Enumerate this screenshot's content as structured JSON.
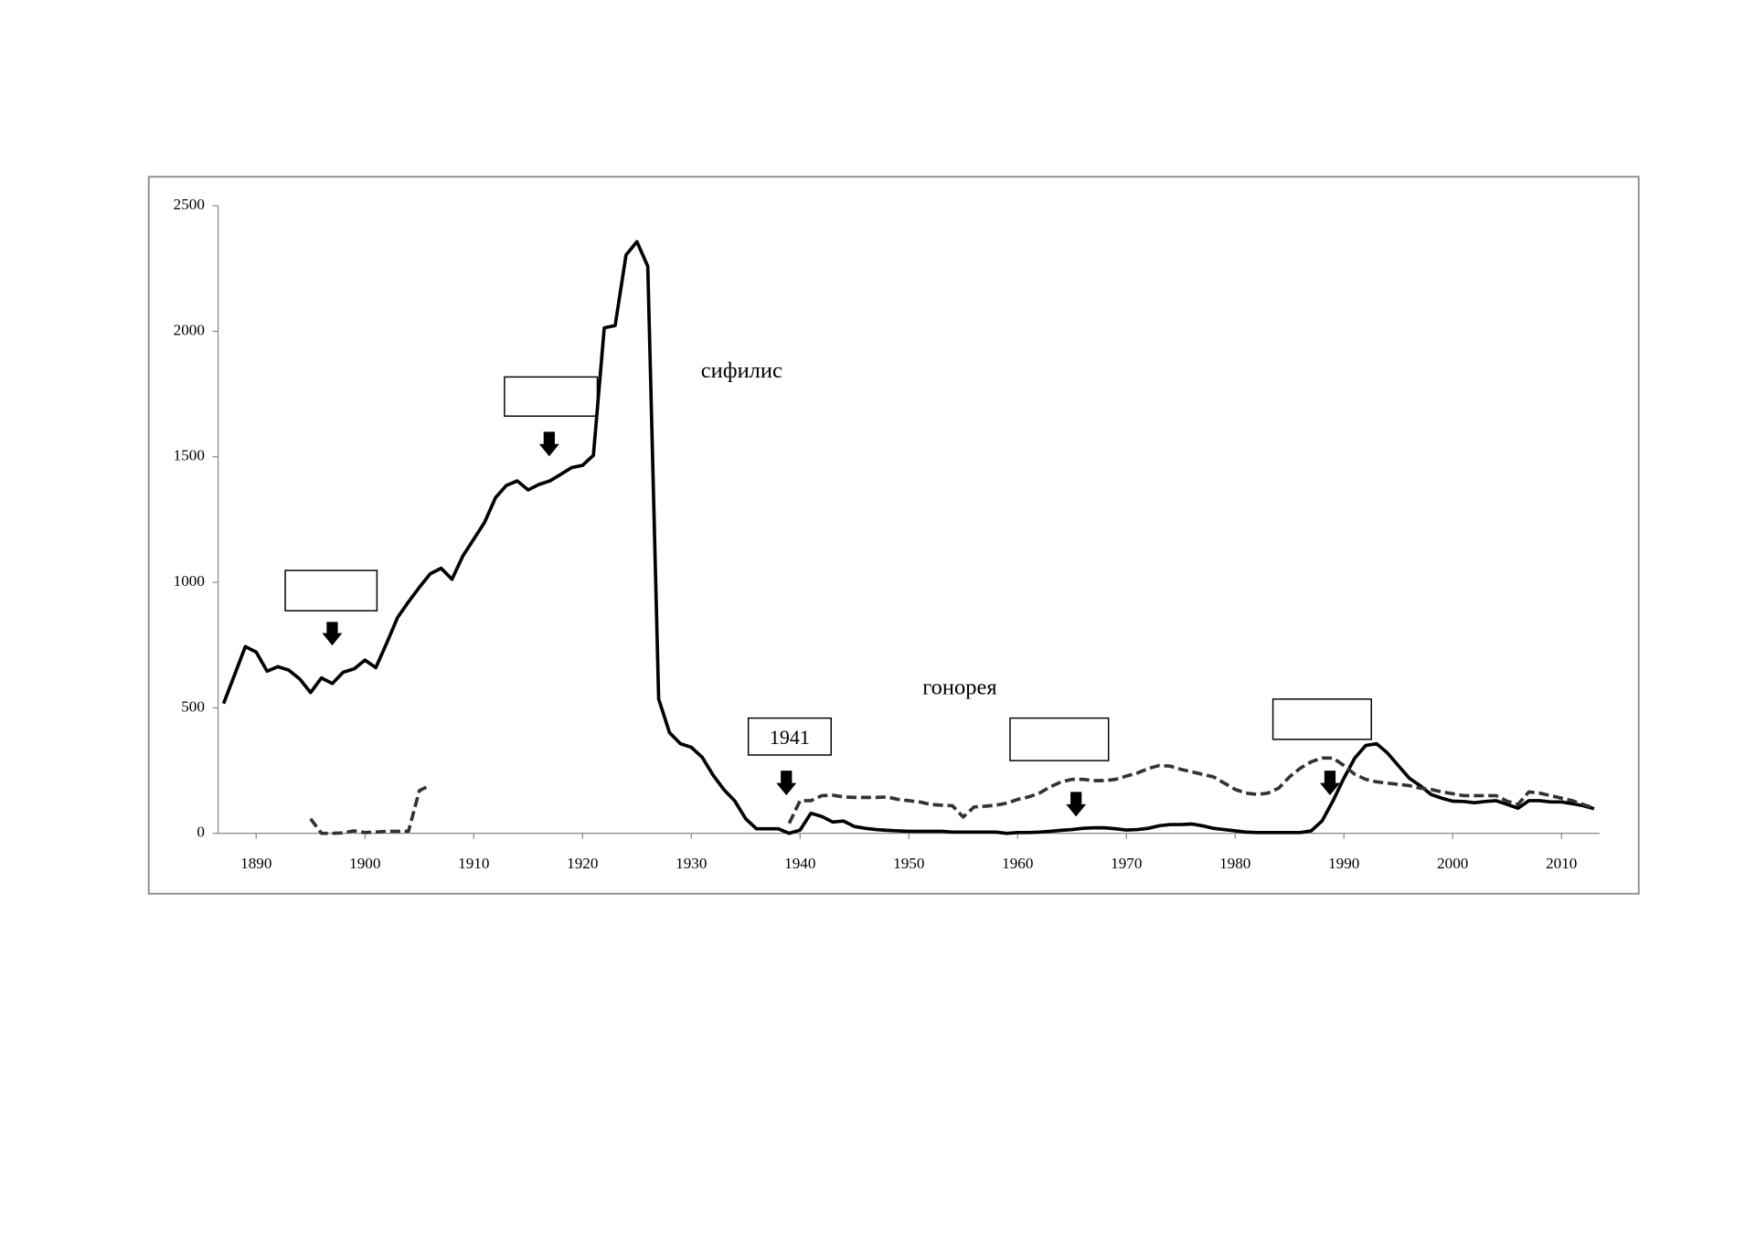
{
  "chart_data": {
    "type": "line",
    "x": [
      1887,
      1888,
      1889,
      1890,
      1891,
      1892,
      1893,
      1894,
      1895,
      1896,
      1897,
      1898,
      1899,
      1900,
      1901,
      1902,
      1903,
      1904,
      1905,
      1906,
      1907,
      1908,
      1909,
      1910,
      1911,
      1912,
      1913,
      1914,
      1915,
      1916,
      1917,
      1918,
      1919,
      1920,
      1921,
      1922,
      1923,
      1924,
      1925,
      1926,
      1927,
      1928,
      1929,
      1930,
      1931,
      1932,
      1933,
      1934,
      1935,
      1936,
      1937,
      1938,
      1939,
      1940,
      1941,
      1942,
      1943,
      1944,
      1945,
      1946,
      1947,
      1948,
      1949,
      1950,
      1951,
      1952,
      1953,
      1954,
      1955,
      1956,
      1957,
      1958,
      1959,
      1960,
      1961,
      1962,
      1963,
      1964,
      1965,
      1966,
      1967,
      1968,
      1969,
      1970,
      1971,
      1972,
      1973,
      1974,
      1975,
      1976,
      1977,
      1978,
      1979,
      1980,
      1981,
      1982,
      1983,
      1984,
      1985,
      1986,
      1987,
      1988,
      1989,
      1990,
      1991,
      1992,
      1993,
      1994,
      1995,
      1996,
      1997,
      1998,
      1999,
      2000,
      2001,
      2002,
      2003,
      2004,
      2005,
      2006,
      2007,
      2008,
      2009,
      2010,
      2011,
      2012,
      2013
    ],
    "series": [
      {
        "name": "сифилис",
        "color": "#000000",
        "dash": false,
        "values": [
          517,
          630,
          744,
          722,
          646,
          664,
          650,
          615,
          561,
          619,
          597,
          642,
          655,
          690,
          660,
          758,
          860,
          922,
          980,
          1034,
          1056,
          1012,
          1105,
          1172,
          1239,
          1337,
          1386,
          1404,
          1368,
          1390,
          1404,
          1430,
          1457,
          1466,
          1506,
          2014,
          2023,
          2304,
          2357,
          2259,
          535,
          401,
          357,
          343,
          303,
          232,
          174,
          129,
          58,
          18,
          18,
          18,
          0,
          13,
          80,
          67,
          45,
          49,
          27,
          20,
          15,
          12,
          10,
          8,
          8,
          8,
          8,
          5,
          5,
          5,
          5,
          5,
          0,
          3,
          3,
          5,
          8,
          12,
          15,
          20,
          22,
          22,
          18,
          13,
          15,
          20,
          30,
          35,
          35,
          37,
          30,
          20,
          15,
          10,
          5,
          3,
          3,
          3,
          3,
          3,
          10,
          50,
          130,
          220,
          300,
          350,
          357,
          320,
          270,
          220,
          190,
          155,
          140,
          128,
          127,
          122,
          127,
          130,
          115,
          100,
          130,
          130,
          125,
          125,
          118,
          110,
          98
        ]
      },
      {
        "name": "гонорея",
        "color": "#333333",
        "dash": true,
        "values": [
          null,
          null,
          null,
          null,
          null,
          null,
          null,
          null,
          58,
          0,
          0,
          2,
          10,
          3,
          5,
          8,
          8,
          8,
          170,
          192,
          null,
          null,
          null,
          null,
          null,
          null,
          null,
          null,
          null,
          null,
          null,
          null,
          null,
          null,
          null,
          null,
          null,
          null,
          null,
          null,
          null,
          null,
          null,
          null,
          null,
          null,
          null,
          null,
          null,
          null,
          null,
          null,
          40,
          130,
          130,
          150,
          152,
          145,
          143,
          143,
          143,
          145,
          135,
          130,
          125,
          115,
          112,
          110,
          65,
          105,
          108,
          112,
          120,
          135,
          145,
          160,
          185,
          205,
          215,
          215,
          210,
          210,
          215,
          228,
          240,
          258,
          270,
          268,
          255,
          245,
          235,
          225,
          200,
          175,
          160,
          155,
          160,
          180,
          225,
          260,
          285,
          300,
          300,
          270,
          235,
          215,
          205,
          200,
          195,
          190,
          180,
          175,
          165,
          158,
          150,
          150,
          150,
          150,
          128,
          115,
          165,
          160,
          150,
          140,
          130,
          115,
          100
        ]
      }
    ],
    "xlim": [
      1886.5,
      2013.5
    ],
    "xticks": [
      1890,
      1900,
      1910,
      1920,
      1930,
      1940,
      1950,
      1960,
      1970,
      1980,
      1990,
      2000,
      2010
    ],
    "ylim": [
      0,
      2500
    ],
    "yticks": [
      0,
      500,
      1000,
      1500,
      2000,
      2500
    ],
    "annotations": [
      "сифилис",
      "гонорея",
      "1941"
    ]
  }
}
